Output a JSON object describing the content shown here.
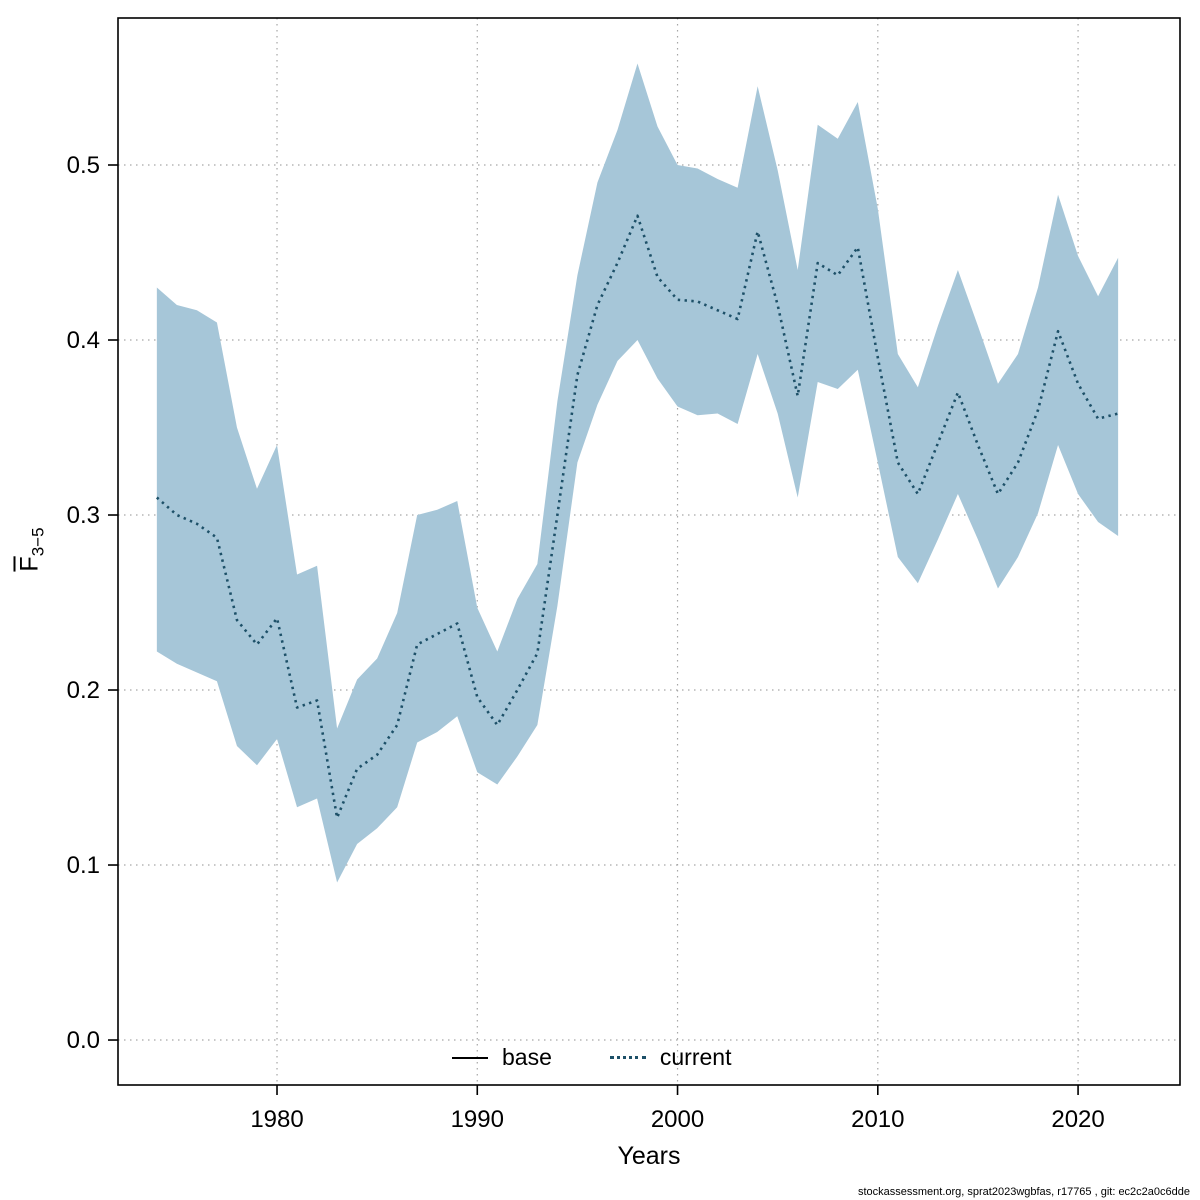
{
  "footer": {
    "text": "stockassessment.org, sprat2023wgbfas, r17765 , git: ec2c2a0c6dde"
  },
  "chart_data": {
    "type": "line",
    "title": "",
    "xlabel": "Years",
    "ylabel": "F3-5",
    "ylabel_main": "F",
    "ylabel_sub": "3−5",
    "grid": true,
    "xlim": [
      1972.06,
      2025.09
    ],
    "ylim": [
      -0.0257,
      0.584
    ],
    "xticks": [
      1980,
      1990,
      2000,
      2010,
      2020
    ],
    "yticks": [
      0.0,
      0.1,
      0.2,
      0.3,
      0.4,
      0.5
    ],
    "x": [
      1974,
      1975,
      1976,
      1977,
      1978,
      1979,
      1980,
      1981,
      1982,
      1983,
      1984,
      1985,
      1986,
      1987,
      1988,
      1989,
      1990,
      1991,
      1992,
      1993,
      1994,
      1995,
      1996,
      1997,
      1998,
      1999,
      2000,
      2001,
      2002,
      2003,
      2004,
      2005,
      2006,
      2007,
      2008,
      2009,
      2010,
      2011,
      2012,
      2013,
      2014,
      2015,
      2016,
      2017,
      2018,
      2019,
      2020,
      2021,
      2022
    ],
    "series": [
      {
        "name": "current",
        "style": "dotted",
        "color": "#1d5068",
        "values": [
          0.31,
          0.3,
          0.295,
          0.287,
          0.24,
          0.226,
          0.241,
          0.19,
          0.194,
          0.127,
          0.155,
          0.163,
          0.18,
          0.226,
          0.232,
          0.238,
          0.196,
          0.18,
          0.2,
          0.221,
          0.3,
          0.38,
          0.42,
          0.444,
          0.471,
          0.436,
          0.423,
          0.422,
          0.417,
          0.412,
          0.462,
          0.42,
          0.368,
          0.444,
          0.437,
          0.453,
          0.39,
          0.33,
          0.312,
          0.341,
          0.37,
          0.34,
          0.312,
          0.33,
          0.36,
          0.405,
          0.375,
          0.355,
          0.358
        ]
      }
    ],
    "band": {
      "name": "confidence-band",
      "color": "#a6c6d8",
      "upper": [
        0.43,
        0.42,
        0.417,
        0.41,
        0.35,
        0.315,
        0.34,
        0.266,
        0.271,
        0.178,
        0.206,
        0.218,
        0.244,
        0.3,
        0.303,
        0.308,
        0.247,
        0.222,
        0.252,
        0.272,
        0.365,
        0.437,
        0.49,
        0.52,
        0.558,
        0.522,
        0.5,
        0.498,
        0.492,
        0.487,
        0.545,
        0.497,
        0.44,
        0.523,
        0.515,
        0.536,
        0.475,
        0.392,
        0.373,
        0.408,
        0.44,
        0.408,
        0.375,
        0.392,
        0.43,
        0.483,
        0.448,
        0.425,
        0.447
      ],
      "lower": [
        0.222,
        0.215,
        0.21,
        0.205,
        0.168,
        0.157,
        0.172,
        0.133,
        0.138,
        0.09,
        0.112,
        0.121,
        0.133,
        0.17,
        0.176,
        0.185,
        0.153,
        0.146,
        0.162,
        0.18,
        0.248,
        0.33,
        0.363,
        0.388,
        0.4,
        0.378,
        0.362,
        0.357,
        0.358,
        0.352,
        0.392,
        0.358,
        0.31,
        0.376,
        0.372,
        0.383,
        0.33,
        0.276,
        0.261,
        0.286,
        0.312,
        0.286,
        0.258,
        0.276,
        0.301,
        0.34,
        0.312,
        0.296,
        0.288
      ]
    },
    "legend": [
      {
        "label": "base",
        "style": "solid",
        "color": "#000000"
      },
      {
        "label": "current",
        "style": "dotted",
        "color": "#1d5068"
      }
    ],
    "legend_position": "bottom-inside",
    "grid_color": "#a6a6a6",
    "axis_color": "#000000"
  }
}
